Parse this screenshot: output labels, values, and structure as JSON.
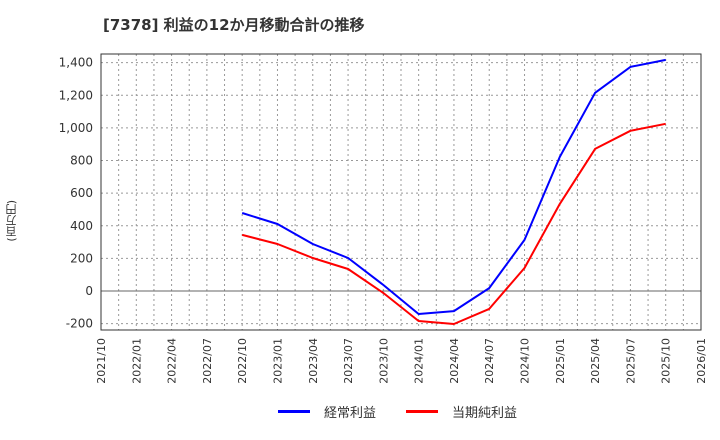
{
  "title": "[7378]  利益の12か月移動合計の推移",
  "y_unit_label": "(百万円)",
  "legend": [
    {
      "label": "経常利益",
      "color": "#0000ff"
    },
    {
      "label": "当期純利益",
      "color": "#ff0000"
    }
  ],
  "chart_data": {
    "type": "line",
    "title": "[7378]  利益の12か月移動合計の推移",
    "xlabel": "",
    "ylabel": "(百万円)",
    "ylim": [
      -230,
      1460
    ],
    "yticks": [
      -200,
      0,
      200,
      400,
      600,
      800,
      1000,
      1200,
      1400
    ],
    "ytick_labels": [
      "-200",
      "0",
      "200",
      "400",
      "600",
      "800",
      "1,000",
      "1,200",
      "1,400"
    ],
    "xtick_labels": [
      "2021/10",
      "2022/01",
      "2022/04",
      "2022/07",
      "2022/10",
      "2023/01",
      "2023/04",
      "2023/07",
      "2023/10",
      "2024/01",
      "2024/04",
      "2024/07",
      "2024/10",
      "2025/01",
      "2025/04",
      "2025/07",
      "2025/10",
      "2026/01"
    ],
    "grid": true,
    "legend_position": "bottom",
    "x": [
      "2022/10",
      "2023/01",
      "2023/04",
      "2023/07",
      "2023/10",
      "2024/01",
      "2024/04",
      "2024/07",
      "2024/10",
      "2025/01",
      "2025/04",
      "2025/07",
      "2025/10"
    ],
    "series": [
      {
        "name": "経常利益",
        "color": "#0000ff",
        "values": [
          478,
          411,
          288,
          202,
          37,
          -141,
          -123,
          18,
          313,
          822,
          1215,
          1374,
          1417
        ]
      },
      {
        "name": "当期純利益",
        "color": "#ff0000",
        "values": [
          344,
          288,
          202,
          135,
          -12,
          -184,
          -202,
          -110,
          141,
          534,
          871,
          982,
          1025
        ]
      }
    ]
  }
}
